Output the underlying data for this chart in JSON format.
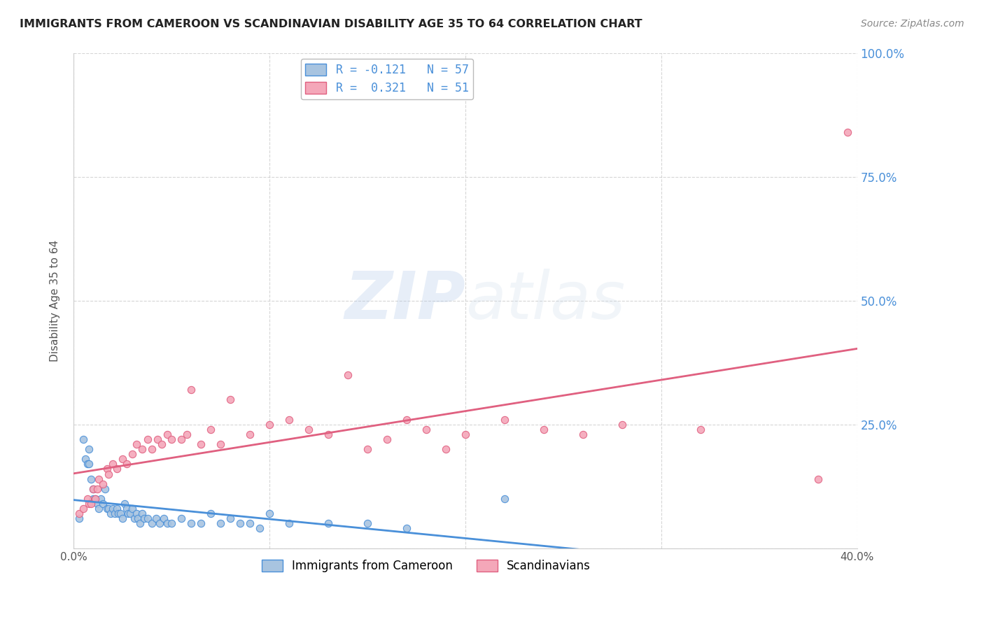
{
  "title": "IMMIGRANTS FROM CAMEROON VS SCANDINAVIAN DISABILITY AGE 35 TO 64 CORRELATION CHART",
  "source": "Source: ZipAtlas.com",
  "ylabel": "Disability Age 35 to 64",
  "xlim": [
    0.0,
    0.4
  ],
  "ylim": [
    0.0,
    1.0
  ],
  "yticks": [
    0.0,
    0.25,
    0.5,
    0.75,
    1.0
  ],
  "xticks": [
    0.0,
    0.1,
    0.2,
    0.3,
    0.4
  ],
  "legend_label1": "Immigrants from Cameroon",
  "legend_label2": "Scandinavians",
  "R1": -0.121,
  "N1": 57,
  "R2": 0.321,
  "N2": 51,
  "color1": "#a8c4e0",
  "color2": "#f4a7b9",
  "line_color1": "#4a90d9",
  "line_color2": "#e06080",
  "watermark_zip": "ZIP",
  "watermark_atlas": "atlas",
  "background_color": "#ffffff",
  "grid_color": "#cccccc",
  "cameroon_x": [
    0.003,
    0.005,
    0.006,
    0.007,
    0.008,
    0.008,
    0.009,
    0.01,
    0.01,
    0.011,
    0.012,
    0.013,
    0.014,
    0.015,
    0.016,
    0.017,
    0.018,
    0.019,
    0.02,
    0.021,
    0.022,
    0.023,
    0.024,
    0.025,
    0.026,
    0.027,
    0.028,
    0.029,
    0.03,
    0.031,
    0.032,
    0.033,
    0.034,
    0.035,
    0.036,
    0.038,
    0.04,
    0.042,
    0.044,
    0.046,
    0.048,
    0.05,
    0.055,
    0.06,
    0.065,
    0.07,
    0.075,
    0.08,
    0.085,
    0.09,
    0.095,
    0.1,
    0.11,
    0.13,
    0.15,
    0.17,
    0.22
  ],
  "cameroon_y": [
    0.06,
    0.22,
    0.18,
    0.17,
    0.2,
    0.17,
    0.14,
    0.12,
    0.1,
    0.1,
    0.09,
    0.08,
    0.1,
    0.09,
    0.12,
    0.08,
    0.08,
    0.07,
    0.08,
    0.07,
    0.08,
    0.07,
    0.07,
    0.06,
    0.09,
    0.08,
    0.07,
    0.07,
    0.08,
    0.06,
    0.07,
    0.06,
    0.05,
    0.07,
    0.06,
    0.06,
    0.05,
    0.06,
    0.05,
    0.06,
    0.05,
    0.05,
    0.06,
    0.05,
    0.05,
    0.07,
    0.05,
    0.06,
    0.05,
    0.05,
    0.04,
    0.07,
    0.05,
    0.05,
    0.05,
    0.04,
    0.1
  ],
  "scandinavian_x": [
    0.003,
    0.005,
    0.007,
    0.008,
    0.009,
    0.01,
    0.011,
    0.012,
    0.013,
    0.015,
    0.017,
    0.018,
    0.02,
    0.022,
    0.025,
    0.027,
    0.03,
    0.032,
    0.035,
    0.038,
    0.04,
    0.043,
    0.045,
    0.048,
    0.05,
    0.055,
    0.058,
    0.06,
    0.065,
    0.07,
    0.075,
    0.08,
    0.09,
    0.1,
    0.11,
    0.12,
    0.13,
    0.14,
    0.15,
    0.16,
    0.17,
    0.18,
    0.19,
    0.2,
    0.22,
    0.24,
    0.26,
    0.28,
    0.32,
    0.38,
    0.395
  ],
  "scandinavian_y": [
    0.07,
    0.08,
    0.1,
    0.09,
    0.09,
    0.12,
    0.1,
    0.12,
    0.14,
    0.13,
    0.16,
    0.15,
    0.17,
    0.16,
    0.18,
    0.17,
    0.19,
    0.21,
    0.2,
    0.22,
    0.2,
    0.22,
    0.21,
    0.23,
    0.22,
    0.22,
    0.23,
    0.32,
    0.21,
    0.24,
    0.21,
    0.3,
    0.23,
    0.25,
    0.26,
    0.24,
    0.23,
    0.35,
    0.2,
    0.22,
    0.26,
    0.24,
    0.2,
    0.23,
    0.26,
    0.24,
    0.23,
    0.25,
    0.24,
    0.14,
    0.84
  ]
}
